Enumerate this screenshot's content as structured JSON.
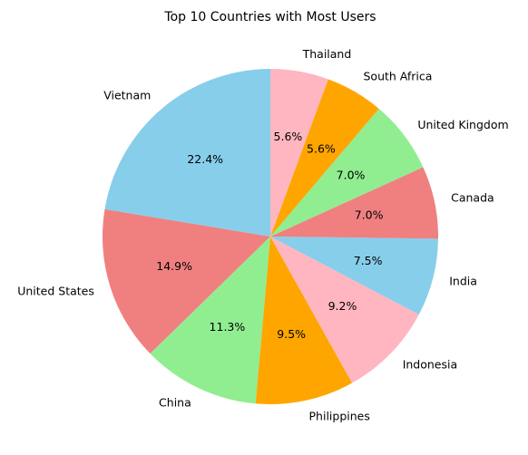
{
  "chart_data": {
    "type": "pie",
    "title": "Top 10 Countries with Most Users",
    "start_angle_deg": 90,
    "direction": "counterclockwise",
    "slices": [
      {
        "label": "Vietnam",
        "value": 22.4,
        "pct_label": "22.4%",
        "color": "#87CEEB"
      },
      {
        "label": "United States",
        "value": 14.9,
        "pct_label": "14.9%",
        "color": "#F08080"
      },
      {
        "label": "China",
        "value": 11.3,
        "pct_label": "11.3%",
        "color": "#90EE90"
      },
      {
        "label": "Philippines",
        "value": 9.5,
        "pct_label": "9.5%",
        "color": "#FFA500"
      },
      {
        "label": "Indonesia",
        "value": 9.2,
        "pct_label": "9.2%",
        "color": "#FFB6C1"
      },
      {
        "label": "India",
        "value": 7.5,
        "pct_label": "7.5%",
        "color": "#87CEEB"
      },
      {
        "label": "Canada",
        "value": 7.0,
        "pct_label": "7.0%",
        "color": "#F08080"
      },
      {
        "label": "United Kingdom",
        "value": 7.0,
        "pct_label": "7.0%",
        "color": "#90EE90"
      },
      {
        "label": "South Africa",
        "value": 5.6,
        "pct_label": "5.6%",
        "color": "#FFA500"
      },
      {
        "label": "Thailand",
        "value": 5.6,
        "pct_label": "5.6%",
        "color": "#FFB6C1"
      }
    ]
  }
}
